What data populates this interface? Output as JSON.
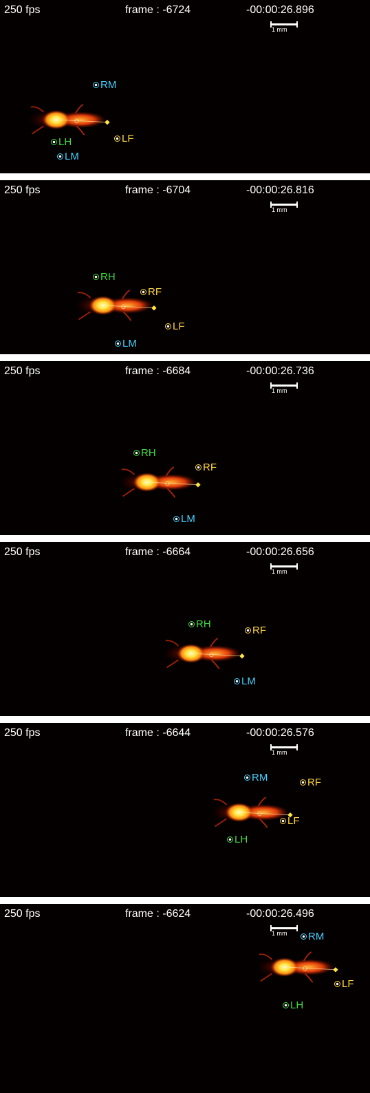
{
  "colors": {
    "cyan": "#3fd0ff",
    "green": "#3fdc3f",
    "yellow": "#ffd83f",
    "background": "#050000",
    "separator": "#ffffff"
  },
  "frames": [
    {
      "fps": "250 fps",
      "frame": "frame : -6724",
      "time": "-00:00:26.896",
      "scale": "1 mm",
      "markers": [
        {
          "label": "RM",
          "color": "cyan"
        },
        {
          "label": "LH",
          "color": "green"
        },
        {
          "label": "LF",
          "color": "yellow"
        },
        {
          "label": "LM",
          "color": "cyan"
        }
      ]
    },
    {
      "fps": "250 fps",
      "frame": "frame : -6704",
      "time": "-00:00:26.816",
      "scale": "1 mm",
      "markers": [
        {
          "label": "RH",
          "color": "green"
        },
        {
          "label": "RF",
          "color": "yellow"
        },
        {
          "label": "LF",
          "color": "yellow"
        },
        {
          "label": "LM",
          "color": "cyan"
        }
      ]
    },
    {
      "fps": "250 fps",
      "frame": "frame : -6684",
      "time": "-00:00:26.736",
      "scale": "1 mm",
      "markers": [
        {
          "label": "RH",
          "color": "green"
        },
        {
          "label": "RF",
          "color": "yellow"
        },
        {
          "label": "LM",
          "color": "cyan"
        }
      ]
    },
    {
      "fps": "250 fps",
      "frame": "frame : -6664",
      "time": "-00:00:26.656",
      "scale": "1 mm",
      "markers": [
        {
          "label": "RH",
          "color": "green"
        },
        {
          "label": "RF",
          "color": "yellow"
        },
        {
          "label": "LM",
          "color": "cyan"
        }
      ]
    },
    {
      "fps": "250 fps",
      "frame": "frame : -6644",
      "time": "-00:00:26.576",
      "scale": "1 mm",
      "markers": [
        {
          "label": "RM",
          "color": "cyan"
        },
        {
          "label": "RF",
          "color": "yellow"
        },
        {
          "label": "LF",
          "color": "yellow"
        },
        {
          "label": "LH",
          "color": "green"
        }
      ]
    },
    {
      "fps": "250 fps",
      "frame": "frame : -6624",
      "time": "-00:00:26.496",
      "scale": "1 mm",
      "markers": [
        {
          "label": "RM",
          "color": "cyan"
        },
        {
          "label": "LF",
          "color": "yellow"
        },
        {
          "label": "LH",
          "color": "green"
        }
      ]
    }
  ]
}
